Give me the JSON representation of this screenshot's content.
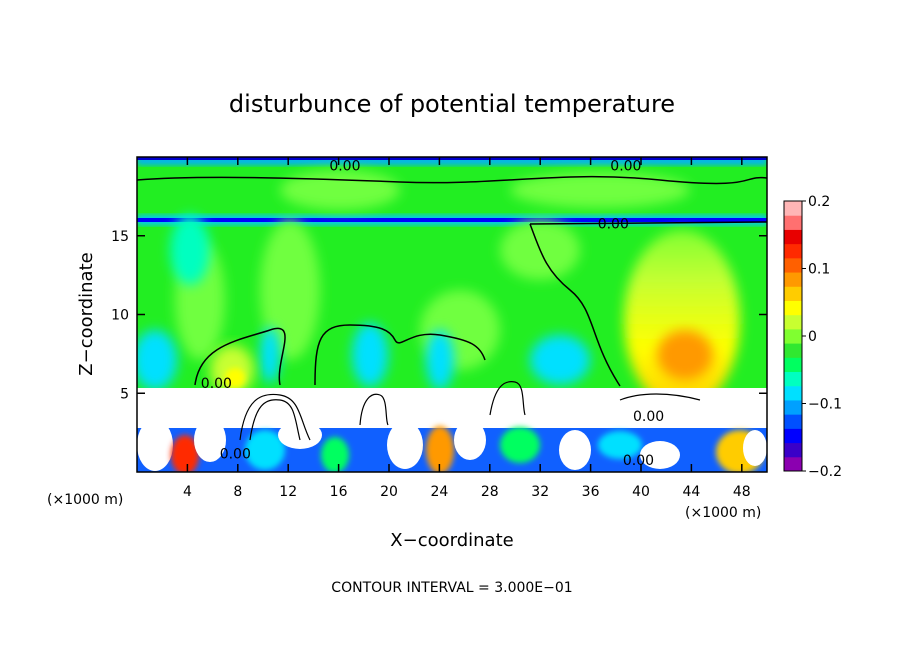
{
  "chart_data": {
    "type": "heatmap",
    "title": "disturbunce of potential temperature",
    "xlabel": "X−coordinate",
    "ylabel": "Z−coordinate",
    "x_unit_left": "(×1000 m)",
    "x_unit_right": "(×1000 m)",
    "xlim": [
      0,
      50
    ],
    "ylim": [
      0,
      20
    ],
    "x_ticks": [
      4,
      8,
      12,
      16,
      20,
      24,
      28,
      32,
      36,
      40,
      44,
      48
    ],
    "x_tick_labels": [
      "4",
      "8",
      "12",
      "16",
      "20",
      "24",
      "28",
      "32",
      "36",
      "40",
      "44",
      "48"
    ],
    "y_ticks": [
      5,
      10,
      15
    ],
    "y_tick_labels": [
      "5",
      "10",
      "15"
    ],
    "colorbar": {
      "range": [
        -0.2,
        0.2
      ],
      "tick_values": [
        0.2,
        0.1,
        0,
        -0.1,
        -0.2
      ],
      "tick_labels": [
        "0.2",
        "0.1",
        "0",
        "−0.1",
        "−0.2"
      ],
      "colors": [
        "#8b00b0",
        "#3a00c8",
        "#0000ff",
        "#0050ff",
        "#00a0ff",
        "#00e0ff",
        "#00ffc0",
        "#00ff60",
        "#30e830",
        "#80ff30",
        "#c8ff30",
        "#ffff00",
        "#ffcc00",
        "#ff9900",
        "#ff6000",
        "#ff2a00",
        "#e80000",
        "#ff7070",
        "#ffb6b6"
      ]
    },
    "contour_labels": [
      {
        "x": 16.5,
        "z": 19.4,
        "text": "0.00"
      },
      {
        "x": 38.8,
        "z": 19.4,
        "text": "0.00"
      },
      {
        "x": 37.8,
        "z": 15.7,
        "text": "0.00"
      },
      {
        "x": 6.3,
        "z": 5.6,
        "text": "0.00"
      },
      {
        "x": 7.8,
        "z": 1.1,
        "text": "0.00"
      },
      {
        "x": 40.6,
        "z": 3.5,
        "text": "0.00"
      },
      {
        "x": 39.8,
        "z": 0.7,
        "text": "0.00"
      }
    ],
    "contour_interval_text": "CONTOUR INTERVAL = 3.000E−01"
  }
}
